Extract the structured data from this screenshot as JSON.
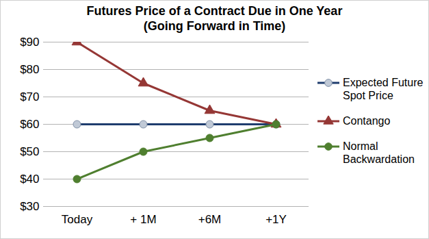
{
  "chart_data": {
    "type": "line",
    "title": "Futures Price of a Contract Due in One Year",
    "subtitle": "(Going Forward in Time)",
    "categories": [
      "Today",
      "+ 1M",
      "+6M",
      "+1Y"
    ],
    "series": [
      {
        "name": "Expected Future Spot Price",
        "color": "#1f3d6e",
        "marker": "hollow-circle",
        "values": [
          60,
          60,
          60,
          60
        ]
      },
      {
        "name": "Contango",
        "color": "#953735",
        "marker": "triangle",
        "values": [
          90,
          75,
          65,
          60
        ]
      },
      {
        "name": "Normal Backwardation",
        "color": "#4f7f2f",
        "marker": "circle",
        "values": [
          40,
          50,
          55,
          60
        ]
      }
    ],
    "ylim": [
      30,
      90
    ],
    "yticks": [
      {
        "value": 30,
        "label": "$30"
      },
      {
        "value": 40,
        "label": "$40"
      },
      {
        "value": 50,
        "label": "$50"
      },
      {
        "value": 60,
        "label": "$60"
      },
      {
        "value": 70,
        "label": "$70"
      },
      {
        "value": 80,
        "label": "$80"
      },
      {
        "value": 90,
        "label": "$90"
      }
    ],
    "grid": true,
    "legend": "right"
  }
}
